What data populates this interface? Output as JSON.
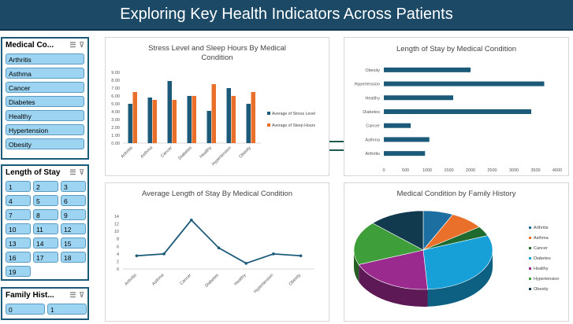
{
  "header": {
    "title": "Exploring Key Health Indicators Across Patients"
  },
  "slicers": {
    "medical": {
      "title": "Medical Co...",
      "items": [
        "Arthritis",
        "Asthma",
        "Cancer",
        "Diabetes",
        "Healthy",
        "Hypertension",
        "Obesity"
      ]
    },
    "length": {
      "title": "Length of Stay",
      "items": [
        "1",
        "2",
        "3",
        "4",
        "5",
        "6",
        "7",
        "8",
        "9",
        "10",
        "11",
        "12",
        "13",
        "14",
        "15",
        "16",
        "17",
        "18",
        "19"
      ]
    },
    "family": {
      "title": "Family Hist...",
      "items": [
        "0",
        "1"
      ]
    }
  },
  "charts": {
    "stress_sleep": {
      "type": "bar",
      "title": "Stress Level and Sleep Hours By Medical Condition",
      "categories": [
        "Arthritis",
        "Asthma",
        "Cancer",
        "Diabetes",
        "Healthy",
        "Hypertension",
        "Obesity"
      ],
      "series": [
        {
          "name": "Average of Stress Level",
          "color": "#1c5a7a",
          "values": [
            5.0,
            5.8,
            7.9,
            6.0,
            4.1,
            7.0,
            5.0
          ]
        },
        {
          "name": "Average of Sleep Hours",
          "color": "#e8702a",
          "values": [
            6.5,
            5.5,
            5.5,
            6.0,
            7.5,
            6.0,
            6.5
          ]
        }
      ],
      "yticks": [
        "9.00",
        "8.00",
        "7.00",
        "6.00",
        "5.00",
        "4.00",
        "3.00",
        "2.00",
        "1.00",
        "0.00"
      ],
      "ylim": [
        0,
        9
      ]
    },
    "length_stay": {
      "type": "bar",
      "title": "Length of Stay by Medical Condition",
      "categories": [
        "Obesity",
        "Hypertension",
        "Healthy",
        "Diabetes",
        "Cancer",
        "Asthma",
        "Arthritis"
      ],
      "values": [
        2000,
        3700,
        1600,
        3400,
        620,
        1050,
        950
      ],
      "color": "#1c5a7a",
      "xticks": [
        "0",
        "500",
        "1000",
        "1500",
        "2000",
        "2500",
        "3000",
        "3500",
        "4000"
      ],
      "xlim": [
        0,
        4000
      ]
    },
    "avg_length": {
      "type": "line",
      "title": "Average Length of Stay By Medical Condition",
      "categories": [
        "Arthritis",
        "Asthma",
        "Cancer",
        "Diabetes",
        "Healthy",
        "Hypertension",
        "Obesity"
      ],
      "values": [
        3.5,
        4.0,
        13.0,
        5.6,
        1.5,
        4.0,
        3.5
      ],
      "color": "#1c5a7a",
      "yticks": [
        "14",
        "12",
        "10",
        "8",
        "6",
        "4",
        "2",
        "0"
      ],
      "ylim": [
        0,
        14
      ]
    },
    "family_history": {
      "type": "pie",
      "title": "Medical Condition by Family History",
      "labels": [
        "Arthritis",
        "Asthma",
        "Cancer",
        "Diabetes",
        "Healthy",
        "Hypertension",
        "Obesity"
      ],
      "values": [
        7,
        8,
        4,
        30,
        20,
        18,
        13
      ],
      "colors": [
        "#1c6fa0",
        "#e8702a",
        "#1f6b2f",
        "#17a0d8",
        "#9b2a8f",
        "#3d9e3a",
        "#123a4e"
      ]
    }
  }
}
